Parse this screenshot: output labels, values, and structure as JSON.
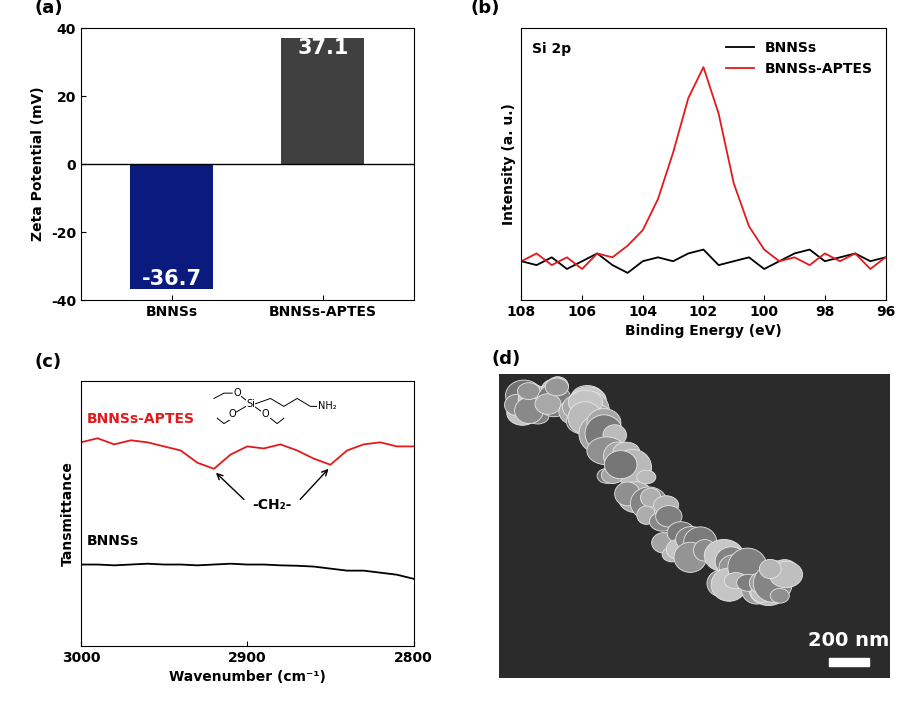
{
  "chart_data": [
    {
      "type": "bar",
      "title": "(a)",
      "y_label": "Zeta Potential (mV)",
      "categories": [
        "BNNSs",
        "BNNSs-APTES"
      ],
      "values": [
        -36.7,
        37.1
      ],
      "colors": [
        "#0b1a7d",
        "#404040"
      ],
      "data_labels": true,
      "ylim": [
        -40,
        40
      ],
      "yticks": [
        -40,
        -20,
        0,
        20,
        40
      ]
    },
    {
      "type": "line",
      "title": "(b)",
      "x_label": "Binding Energy (eV)",
      "y_label": "Intensity (a. u.)",
      "annotations": [
        {
          "text": "Si 2p"
        }
      ],
      "legend": "upper right",
      "tick_labels": "x",
      "x": [
        108,
        107.5,
        107,
        106.5,
        106,
        105.5,
        105,
        104.5,
        104,
        103.5,
        103,
        102.5,
        102,
        101.5,
        101,
        100.5,
        100,
        99.5,
        99,
        98.5,
        98,
        97.5,
        97,
        96.5,
        96
      ],
      "series": [
        {
          "name": "BNNSs",
          "color": "#000000",
          "values": [
            1.0,
            0.9,
            1.1,
            0.8,
            1.0,
            1.2,
            0.9,
            0.7,
            1.0,
            1.1,
            1.0,
            1.2,
            1.3,
            0.9,
            1.0,
            1.1,
            0.8,
            1.0,
            1.2,
            1.3,
            1.0,
            1.1,
            1.2,
            1.0,
            1.1
          ]
        },
        {
          "name": "BNNSs-APTES",
          "color": "#e31a1c",
          "values": [
            1.0,
            1.2,
            0.9,
            1.1,
            0.8,
            1.2,
            1.1,
            1.4,
            1.8,
            2.6,
            3.8,
            5.2,
            6.0,
            4.8,
            3.0,
            1.9,
            1.3,
            1.0,
            1.1,
            0.9,
            1.2,
            1.0,
            1.2,
            0.8,
            1.1
          ]
        }
      ],
      "xlim": [
        108,
        96
      ],
      "xticks": [
        108,
        106,
        104,
        102,
        100,
        98,
        96
      ],
      "ylim": [
        0,
        7
      ]
    },
    {
      "type": "line",
      "title": "(c)",
      "x_label": "Wavenumber (cm⁻¹)",
      "y_label": "Tansmittance",
      "tick_labels": "x",
      "x": [
        3000,
        2990,
        2980,
        2970,
        2960,
        2950,
        2940,
        2930,
        2920,
        2910,
        2900,
        2890,
        2880,
        2870,
        2860,
        2850,
        2840,
        2830,
        2820,
        2810,
        2800
      ],
      "series": [
        {
          "name": "BNNSs-APTES",
          "color": "#e31a1c",
          "values": [
            8.0,
            8.1,
            7.95,
            8.05,
            8.0,
            7.9,
            7.8,
            7.5,
            7.35,
            7.7,
            7.9,
            7.85,
            7.95,
            7.8,
            7.6,
            7.45,
            7.8,
            7.95,
            8.0,
            7.9,
            7.9
          ]
        },
        {
          "name": "BNNSs",
          "color": "#000000",
          "values": [
            5.0,
            5.0,
            4.98,
            5.0,
            5.02,
            5.0,
            5.0,
            4.98,
            5.0,
            5.02,
            5.0,
            5.0,
            4.98,
            4.97,
            4.95,
            4.9,
            4.85,
            4.85,
            4.8,
            4.75,
            4.65
          ]
        }
      ],
      "annotations": [
        {
          "text": "-CH₂-",
          "x": [
            2920,
            2850
          ]
        }
      ],
      "structure": {
        "atoms": [
          "O",
          "O",
          "O",
          "Si",
          "NH₂"
        ]
      },
      "xlim": [
        3000,
        2800
      ],
      "xticks": [
        3000,
        2900,
        2800
      ],
      "ylim": [
        3,
        9.5
      ]
    }
  ],
  "image": {
    "title": "(d)",
    "scale_bar_label": "200 nm"
  }
}
